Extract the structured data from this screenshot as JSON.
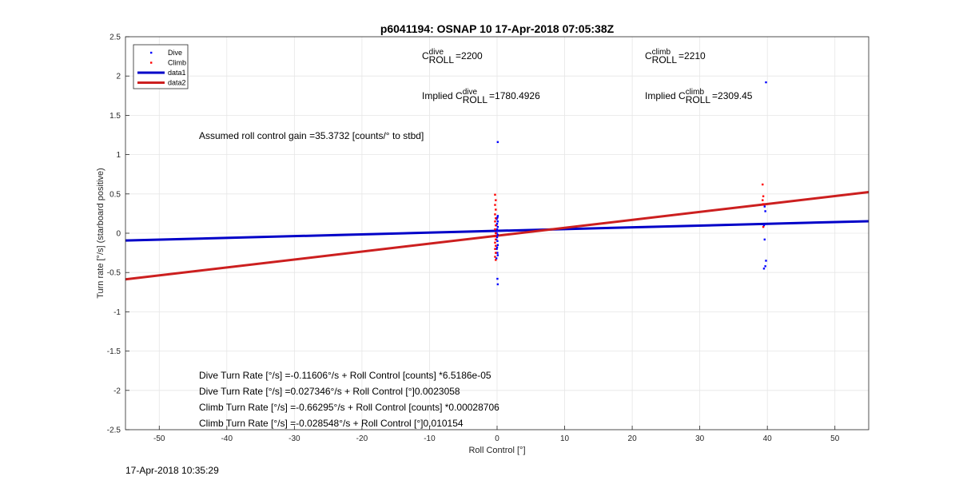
{
  "chart_data": {
    "type": "scatter",
    "title": "p6041194: OSNAP 10 17-Apr-2018 07:05:38Z",
    "xlabel": "Roll Control [°]",
    "ylabel": "Turn rate [°/s] (starboard positive)",
    "xlim": [
      -55,
      55
    ],
    "ylim": [
      -2.5,
      2.5
    ],
    "xticks": [
      -50,
      -40,
      -30,
      -20,
      -10,
      0,
      10,
      20,
      30,
      40,
      50
    ],
    "yticks": [
      -2.5,
      -2,
      -1.5,
      -1,
      -0.5,
      0,
      0.5,
      1,
      1.5,
      2,
      2.5
    ],
    "grid": true,
    "legend_position": "top-left",
    "series": [
      {
        "name": "Dive",
        "kind": "points",
        "color": "#0000ff",
        "points": [
          [
            0.1,
            1.16
          ],
          [
            0.1,
            0.22
          ],
          [
            0.05,
            0.2
          ],
          [
            -0.05,
            0.18
          ],
          [
            0.1,
            0.15
          ],
          [
            0.0,
            0.12
          ],
          [
            -0.1,
            0.1
          ],
          [
            0.1,
            0.08
          ],
          [
            0.0,
            0.05
          ],
          [
            0.05,
            0.03
          ],
          [
            -0.05,
            0.0
          ],
          [
            0.1,
            -0.02
          ],
          [
            0.0,
            -0.05
          ],
          [
            -0.1,
            -0.08
          ],
          [
            0.05,
            -0.1
          ],
          [
            0.1,
            -0.15
          ],
          [
            0.0,
            -0.18
          ],
          [
            -0.05,
            -0.2
          ],
          [
            0.05,
            -0.25
          ],
          [
            0.1,
            -0.28
          ],
          [
            -0.1,
            -0.32
          ],
          [
            0.05,
            -0.58
          ],
          [
            0.1,
            -0.65
          ],
          [
            39.8,
            1.92
          ],
          [
            39.6,
            0.34
          ],
          [
            39.7,
            0.28
          ],
          [
            39.5,
            0.1
          ],
          [
            39.6,
            -0.08
          ],
          [
            39.8,
            -0.35
          ],
          [
            39.7,
            -0.42
          ],
          [
            39.5,
            -0.45
          ]
        ]
      },
      {
        "name": "Climb",
        "kind": "points",
        "color": "#ff0000",
        "points": [
          [
            -0.3,
            0.49
          ],
          [
            -0.2,
            0.42
          ],
          [
            -0.3,
            0.36
          ],
          [
            -0.2,
            0.3
          ],
          [
            -0.3,
            0.24
          ],
          [
            -0.2,
            0.19
          ],
          [
            -0.3,
            0.15
          ],
          [
            -0.2,
            0.1
          ],
          [
            -0.3,
            0.05
          ],
          [
            -0.2,
            0.0
          ],
          [
            -0.3,
            -0.04
          ],
          [
            -0.2,
            -0.08
          ],
          [
            -0.3,
            -0.12
          ],
          [
            -0.2,
            -0.16
          ],
          [
            -0.3,
            -0.2
          ],
          [
            -0.2,
            -0.25
          ],
          [
            -0.3,
            -0.3
          ],
          [
            -0.2,
            -0.34
          ],
          [
            39.3,
            0.62
          ],
          [
            39.4,
            0.47
          ],
          [
            39.3,
            0.42
          ],
          [
            39.4,
            0.37
          ],
          [
            39.4,
            0.08
          ]
        ]
      },
      {
        "name": "data1",
        "kind": "line",
        "color": "#0000c8",
        "x": [
          -55,
          55
        ],
        "y": [
          -0.093,
          0.153
        ]
      },
      {
        "name": "data2",
        "kind": "line",
        "color": "#cc1f1f",
        "x": [
          -55,
          55
        ],
        "y": [
          -0.587,
          0.523
        ]
      }
    ],
    "annotations": {
      "c_dive": {
        "prefix": "C",
        "sup": "dive",
        "sub": "ROLL",
        "value": "=2200"
      },
      "c_climb": {
        "prefix": "C",
        "sup": "climb",
        "sub": "ROLL",
        "value": "=2210"
      },
      "implied_dive": {
        "prefix": "Implied C",
        "sup": "dive",
        "sub": "ROLL",
        "value": "=1780.4926"
      },
      "implied_climb": {
        "prefix": "Implied C",
        "sup": "climb",
        "sub": "ROLL",
        "value": "=2309.45"
      },
      "gain": "Assumed roll control gain =35.3732 [counts/° to stbd]",
      "fit_lines": [
        "Dive Turn Rate [°/s] =-0.11606°/s + Roll Control [counts] *6.5186e-05",
        "Dive Turn Rate [°/s] =0.027346°/s + Roll Control [°]0.0023058",
        "Climb Turn Rate [°/s] =-0.66295°/s + Roll Control [counts] *0.00028706",
        "Climb Turn Rate [°/s] =-0.028548°/s + Roll Control [°]0.010154"
      ]
    }
  },
  "footer": {
    "timestamp": "17-Apr-2018 10:35:29"
  }
}
